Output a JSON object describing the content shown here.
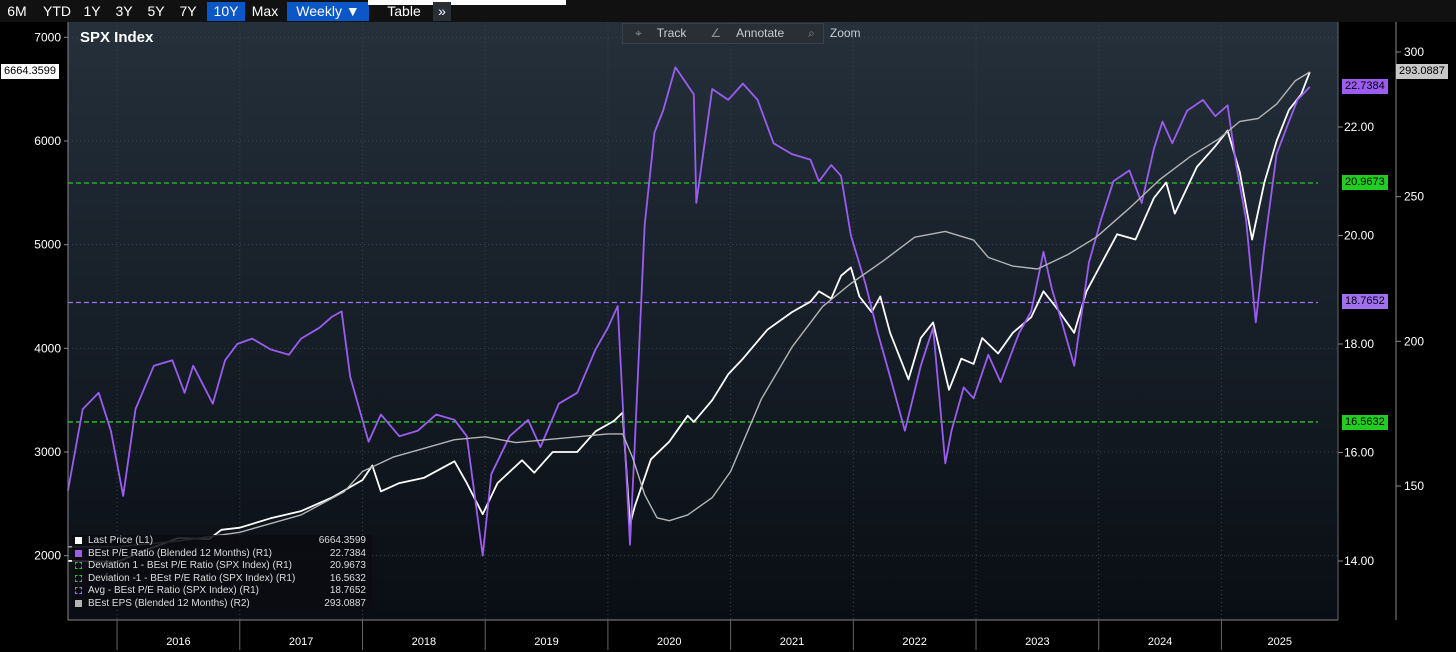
{
  "toolbar": {
    "periods": [
      "6M",
      "YTD",
      "1Y",
      "3Y",
      "5Y",
      "7Y",
      "10Y",
      "Max"
    ],
    "active_period": "10Y",
    "frequency": "Weekly ▼",
    "table": "Table",
    "more": "»"
  },
  "hover_tools": {
    "track": "Track",
    "annotate": "Annotate",
    "zoom": "Zoom"
  },
  "chart_data": {
    "type": "line",
    "title": "SPX Index",
    "x_labels": [
      "2016",
      "2017",
      "2018",
      "2019",
      "2020",
      "2021",
      "2022",
      "2023",
      "2024",
      "2025"
    ],
    "left_axis": {
      "ticks": [
        2000,
        3000,
        4000,
        5000,
        6000,
        7000
      ],
      "ylim": [
        1700,
        7050
      ]
    },
    "right_axis_pe": {
      "ticks": [
        "14.00",
        "16.00",
        "18.00",
        "20.00",
        "22.00"
      ],
      "ylim": [
        13.2,
        23.6
      ]
    },
    "right_axis_eps": {
      "ticks": [
        150,
        200,
        250,
        300
      ],
      "ylim": [
        125,
        304
      ]
    },
    "series": [
      {
        "name": "Last Price (L1)",
        "color": "#ffffff",
        "axis": "left",
        "points": [
          [
            2015.6,
            1950
          ],
          [
            2016.0,
            1940
          ],
          [
            2016.25,
            2060
          ],
          [
            2016.5,
            2170
          ],
          [
            2016.75,
            2160
          ],
          [
            2016.85,
            2250
          ],
          [
            2017.0,
            2270
          ],
          [
            2017.25,
            2360
          ],
          [
            2017.5,
            2430
          ],
          [
            2017.75,
            2560
          ],
          [
            2018.0,
            2730
          ],
          [
            2018.08,
            2870
          ],
          [
            2018.15,
            2620
          ],
          [
            2018.3,
            2700
          ],
          [
            2018.5,
            2750
          ],
          [
            2018.75,
            2910
          ],
          [
            2018.85,
            2700
          ],
          [
            2018.98,
            2400
          ],
          [
            2019.1,
            2700
          ],
          [
            2019.3,
            2920
          ],
          [
            2019.4,
            2800
          ],
          [
            2019.55,
            3000
          ],
          [
            2019.75,
            3000
          ],
          [
            2019.9,
            3200
          ],
          [
            2020.05,
            3300
          ],
          [
            2020.12,
            3380
          ],
          [
            2020.18,
            2300
          ],
          [
            2020.22,
            2480
          ],
          [
            2020.35,
            2930
          ],
          [
            2020.5,
            3100
          ],
          [
            2020.65,
            3350
          ],
          [
            2020.7,
            3290
          ],
          [
            2020.85,
            3500
          ],
          [
            2020.98,
            3750
          ],
          [
            2021.1,
            3900
          ],
          [
            2021.3,
            4180
          ],
          [
            2021.5,
            4350
          ],
          [
            2021.65,
            4450
          ],
          [
            2021.72,
            4550
          ],
          [
            2021.82,
            4480
          ],
          [
            2021.9,
            4700
          ],
          [
            2021.98,
            4780
          ],
          [
            2022.05,
            4500
          ],
          [
            2022.15,
            4350
          ],
          [
            2022.22,
            4500
          ],
          [
            2022.3,
            4150
          ],
          [
            2022.45,
            3700
          ],
          [
            2022.55,
            4100
          ],
          [
            2022.65,
            4250
          ],
          [
            2022.78,
            3600
          ],
          [
            2022.88,
            3900
          ],
          [
            2022.98,
            3850
          ],
          [
            2023.05,
            4100
          ],
          [
            2023.18,
            3950
          ],
          [
            2023.3,
            4150
          ],
          [
            2023.45,
            4300
          ],
          [
            2023.55,
            4550
          ],
          [
            2023.65,
            4400
          ],
          [
            2023.8,
            4150
          ],
          [
            2023.9,
            4550
          ],
          [
            2024.0,
            4770
          ],
          [
            2024.15,
            5100
          ],
          [
            2024.3,
            5050
          ],
          [
            2024.45,
            5450
          ],
          [
            2024.55,
            5600
          ],
          [
            2024.62,
            5300
          ],
          [
            2024.8,
            5750
          ],
          [
            2024.95,
            5950
          ],
          [
            2025.05,
            6100
          ],
          [
            2025.15,
            5700
          ],
          [
            2025.25,
            5050
          ],
          [
            2025.35,
            5600
          ],
          [
            2025.45,
            6000
          ],
          [
            2025.55,
            6300
          ],
          [
            2025.65,
            6450
          ],
          [
            2025.72,
            6664.36
          ]
        ]
      },
      {
        "name": "BEst P/E Ratio (Blended 12 Months) (R1)",
        "color": "#9b5cf0",
        "axis": "pe",
        "points": [
          [
            2015.6,
            15.3
          ],
          [
            2015.72,
            16.8
          ],
          [
            2015.85,
            17.1
          ],
          [
            2015.95,
            16.4
          ],
          [
            2016.05,
            15.2
          ],
          [
            2016.15,
            16.8
          ],
          [
            2016.3,
            17.6
          ],
          [
            2016.45,
            17.7
          ],
          [
            2016.55,
            17.1
          ],
          [
            2016.62,
            17.6
          ],
          [
            2016.78,
            16.9
          ],
          [
            2016.88,
            17.7
          ],
          [
            2016.98,
            18.0
          ],
          [
            2017.1,
            18.1
          ],
          [
            2017.25,
            17.9
          ],
          [
            2017.4,
            17.8
          ],
          [
            2017.5,
            18.1
          ],
          [
            2017.65,
            18.3
          ],
          [
            2017.75,
            18.5
          ],
          [
            2017.83,
            18.6
          ],
          [
            2017.9,
            17.4
          ],
          [
            2018.05,
            16.2
          ],
          [
            2018.15,
            16.7
          ],
          [
            2018.3,
            16.3
          ],
          [
            2018.45,
            16.4
          ],
          [
            2018.6,
            16.7
          ],
          [
            2018.75,
            16.6
          ],
          [
            2018.85,
            16.3
          ],
          [
            2018.98,
            14.1
          ],
          [
            2019.05,
            15.6
          ],
          [
            2019.2,
            16.3
          ],
          [
            2019.35,
            16.6
          ],
          [
            2019.45,
            16.1
          ],
          [
            2019.6,
            16.9
          ],
          [
            2019.75,
            17.1
          ],
          [
            2019.9,
            17.9
          ],
          [
            2020.0,
            18.3
          ],
          [
            2020.08,
            18.7
          ],
          [
            2020.18,
            14.3
          ],
          [
            2020.22,
            16.2
          ],
          [
            2020.3,
            20.2
          ],
          [
            2020.38,
            21.9
          ],
          [
            2020.45,
            22.3
          ],
          [
            2020.55,
            23.1
          ],
          [
            2020.7,
            22.6
          ],
          [
            2020.72,
            20.6
          ],
          [
            2020.85,
            22.7
          ],
          [
            2020.98,
            22.5
          ],
          [
            2021.1,
            22.8
          ],
          [
            2021.22,
            22.5
          ],
          [
            2021.35,
            21.7
          ],
          [
            2021.5,
            21.5
          ],
          [
            2021.65,
            21.4
          ],
          [
            2021.72,
            21.0
          ],
          [
            2021.82,
            21.3
          ],
          [
            2021.9,
            21.1
          ],
          [
            2021.98,
            20.0
          ],
          [
            2022.1,
            19.1
          ],
          [
            2022.2,
            18.2
          ],
          [
            2022.3,
            17.4
          ],
          [
            2022.42,
            16.4
          ],
          [
            2022.55,
            17.6
          ],
          [
            2022.65,
            18.3
          ],
          [
            2022.75,
            15.8
          ],
          [
            2022.8,
            16.4
          ],
          [
            2022.9,
            17.2
          ],
          [
            2022.98,
            17.0
          ],
          [
            2023.1,
            17.8
          ],
          [
            2023.2,
            17.3
          ],
          [
            2023.35,
            18.2
          ],
          [
            2023.45,
            18.6
          ],
          [
            2023.55,
            19.7
          ],
          [
            2023.62,
            19.0
          ],
          [
            2023.7,
            18.4
          ],
          [
            2023.8,
            17.6
          ],
          [
            2023.92,
            19.5
          ],
          [
            2024.02,
            20.3
          ],
          [
            2024.12,
            21.0
          ],
          [
            2024.25,
            21.2
          ],
          [
            2024.35,
            20.6
          ],
          [
            2024.45,
            21.6
          ],
          [
            2024.52,
            22.1
          ],
          [
            2024.6,
            21.7
          ],
          [
            2024.72,
            22.3
          ],
          [
            2024.85,
            22.5
          ],
          [
            2024.95,
            22.2
          ],
          [
            2025.05,
            22.4
          ],
          [
            2025.12,
            21.3
          ],
          [
            2025.2,
            20.3
          ],
          [
            2025.28,
            18.4
          ],
          [
            2025.35,
            19.8
          ],
          [
            2025.45,
            21.5
          ],
          [
            2025.55,
            22.1
          ],
          [
            2025.62,
            22.5
          ],
          [
            2025.72,
            22.74
          ]
        ]
      },
      {
        "name": "BEst EPS (Blended 12 Months) (R2)",
        "color": "#b4b4b4",
        "axis": "eps",
        "points": [
          [
            2015.6,
            129
          ],
          [
            2016.0,
            129
          ],
          [
            2016.5,
            131
          ],
          [
            2017.0,
            134
          ],
          [
            2017.5,
            140
          ],
          [
            2017.85,
            148
          ],
          [
            2018.0,
            155
          ],
          [
            2018.25,
            160
          ],
          [
            2018.5,
            163
          ],
          [
            2018.75,
            166
          ],
          [
            2019.0,
            167
          ],
          [
            2019.25,
            165
          ],
          [
            2019.5,
            166
          ],
          [
            2019.75,
            167
          ],
          [
            2020.0,
            168
          ],
          [
            2020.12,
            168
          ],
          [
            2020.2,
            160
          ],
          [
            2020.3,
            147
          ],
          [
            2020.4,
            139
          ],
          [
            2020.5,
            138
          ],
          [
            2020.65,
            140
          ],
          [
            2020.85,
            146
          ],
          [
            2021.0,
            155
          ],
          [
            2021.25,
            180
          ],
          [
            2021.5,
            198
          ],
          [
            2021.75,
            212
          ],
          [
            2021.98,
            220
          ],
          [
            2022.25,
            228
          ],
          [
            2022.5,
            236
          ],
          [
            2022.75,
            238
          ],
          [
            2022.98,
            235
          ],
          [
            2023.1,
            229
          ],
          [
            2023.3,
            226
          ],
          [
            2023.5,
            225
          ],
          [
            2023.75,
            230
          ],
          [
            2023.98,
            236
          ],
          [
            2024.25,
            246
          ],
          [
            2024.5,
            256
          ],
          [
            2024.75,
            264
          ],
          [
            2024.98,
            270
          ],
          [
            2025.15,
            276
          ],
          [
            2025.3,
            277
          ],
          [
            2025.45,
            282
          ],
          [
            2025.6,
            290
          ],
          [
            2025.72,
            293.09
          ]
        ]
      }
    ],
    "ref_lines": [
      {
        "name": "Deviation 1 - BEst P/E Ratio (SPX Index) (R1)",
        "value": 20.9673,
        "color": "#22cc22"
      },
      {
        "name": "Avg - BEst P/E Ratio (SPX Index) (R1)",
        "value": 18.7652,
        "color": "#a070f0"
      },
      {
        "name": "Deviation -1 - BEst P/E Ratio (SPX Index) (R1)",
        "value": 16.5632,
        "color": "#22cc22"
      }
    ],
    "value_badges": {
      "last_price": "6664.3599",
      "eps": "293.0887",
      "pe": "22.7384",
      "dev_plus": "20.9673",
      "avg": "18.7652",
      "dev_minus": "16.5632"
    },
    "legend": [
      {
        "label": "Last Price  (L1)",
        "value": "6664.3599",
        "color": "#ffffff",
        "style": "solid"
      },
      {
        "label": "BEst P/E Ratio (Blended 12 Months) (R1)",
        "value": "22.7384",
        "color": "#9b5cf0",
        "style": "solid"
      },
      {
        "label": "Deviation 1 - BEst P/E Ratio (SPX Index) (R1)",
        "value": "20.9673",
        "color": "#22cc22",
        "style": "dashed"
      },
      {
        "label": "Deviation  -1 - BEst P/E Ratio (SPX Index) (R1)",
        "value": "16.5632",
        "color": "#22cc22",
        "style": "dashed"
      },
      {
        "label": "Avg - BEst P/E Ratio (SPX Index) (R1)",
        "value": "18.7652",
        "color": "#a070f0",
        "style": "dashed"
      },
      {
        "label": "BEst EPS (Blended 12 Months) (R2)",
        "value": "293.0887",
        "color": "#b4b4b4",
        "style": "solid"
      }
    ]
  }
}
